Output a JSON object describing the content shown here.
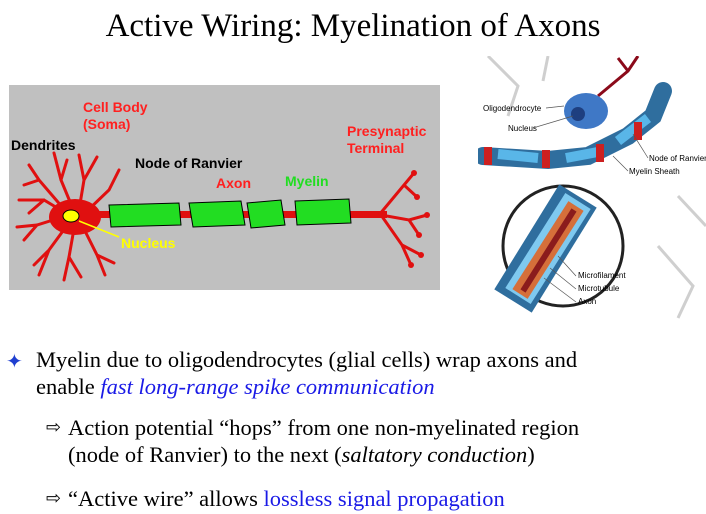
{
  "title": "Active Wiring: Myelination of Axons",
  "left_figure": {
    "labels": {
      "cell_body": "Cell Body",
      "soma": "(Soma)",
      "dendrites": "Dendrites",
      "node_of_ranvier": "Node of Ranvier",
      "axon": "Axon",
      "myelin": "Myelin",
      "presynaptic": "Presynaptic",
      "terminal": "Terminal",
      "nucleus": "Nucleus"
    },
    "colors": {
      "background": "#c0c0c0",
      "neuron": "#e01010",
      "myelin": "#22dd22",
      "nucleus": "#ffff00",
      "label_red": "#ff2020"
    }
  },
  "right_figure": {
    "labels": {
      "oligodendrocyte": "Oligodendrocyte",
      "nucleus": "Nucleus",
      "node_of_ranvier": "Node of Ranvier",
      "myelin_sheath": "Myelin Sheath",
      "microfilament": "Microfilament",
      "microtubule": "Microtubule",
      "axon": "Axon"
    }
  },
  "bullets": {
    "b1_plain": "Myelin due to oligodendrocytes (glial cells) wrap axons and",
    "b1_plain2": "enable ",
    "b1_emph": "fast long-range spike communication",
    "b2_line1": "Action potential “hops” from one non-myelinated region",
    "b2_line2_a": "(node of Ranvier) to the next (",
    "b2_line2_em": "saltatory conduction",
    "b2_line2_b": ")",
    "b3_plain": "“Active wire” allows ",
    "b3_emph": "lossless signal propagation"
  }
}
